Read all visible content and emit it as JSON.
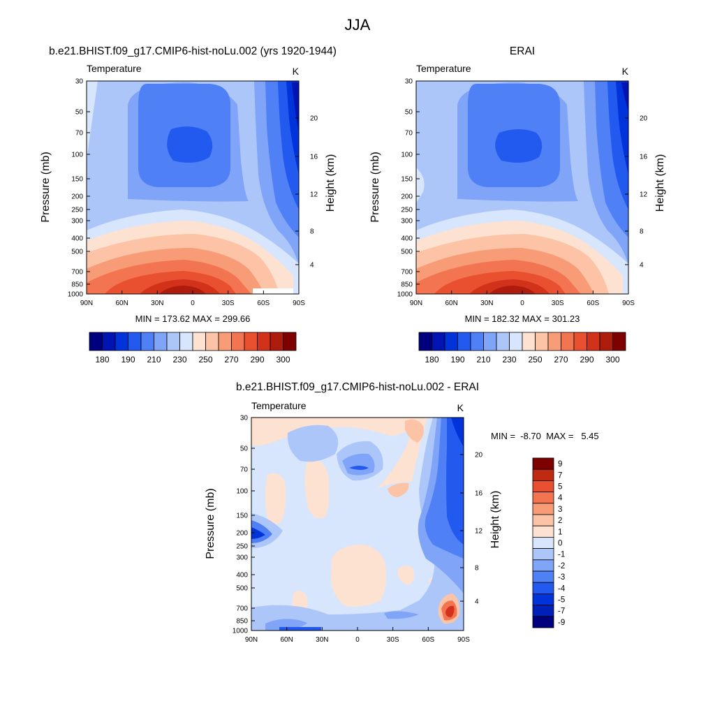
{
  "title": "JJA",
  "colors": {
    "temperature": [
      "#00007f",
      "#0014b4",
      "#0033d9",
      "#2259ef",
      "#5080f5",
      "#7fa4f8",
      "#adc6fa",
      "#d7e6fc",
      "#fde2d2",
      "#fdc3a6",
      "#f89c78",
      "#f27450",
      "#e8502f",
      "#d2321a",
      "#ad1c0d",
      "#7f0000"
    ],
    "difference": [
      "#00007f",
      "#0020b8",
      "#0033d9",
      "#2259ef",
      "#5080f5",
      "#7fa4f8",
      "#adc6fa",
      "#d7e6fc",
      "#fde2d2",
      "#fdc3a6",
      "#f89c78",
      "#f27450",
      "#e8502f",
      "#bf2a12",
      "#7f0000"
    ]
  },
  "chart_data": [
    {
      "type": "heatmap",
      "title": "b.e21.BHIST.f09_g17.CMIP6-hist-noLu.002 (yrs 1920-1944)",
      "left_label": "Temperature",
      "right_label": "K",
      "ylabel": "Pressure (mb)",
      "y2label": "Height (km)",
      "x_ticks": [
        "90N",
        "60N",
        "30N",
        "0",
        "30S",
        "60S",
        "90S"
      ],
      "y_ticks": [
        "30",
        "50",
        "70",
        "100",
        "150",
        "200",
        "250",
        "300",
        "400",
        "500",
        "700",
        "850",
        "1000"
      ],
      "y2_ticks": [
        "20",
        "16",
        "12",
        "8",
        "4"
      ],
      "stats": "MIN = 173.62  MAX = 299.66",
      "colorbar_labels": [
        "180",
        "190",
        "210",
        "230",
        "250",
        "270",
        "290",
        "300"
      ]
    },
    {
      "type": "heatmap",
      "title": "ERAI",
      "left_label": "Temperature",
      "right_label": "K",
      "ylabel": "Pressure (mb)",
      "y2label": "Height (km)",
      "x_ticks": [
        "90N",
        "60N",
        "30N",
        "0",
        "30S",
        "60S",
        "90S"
      ],
      "y_ticks": [
        "30",
        "50",
        "70",
        "100",
        "150",
        "200",
        "250",
        "300",
        "400",
        "500",
        "700",
        "850",
        "1000"
      ],
      "y2_ticks": [
        "20",
        "16",
        "12",
        "8",
        "4"
      ],
      "stats": "MIN = 182.32  MAX = 301.23",
      "colorbar_labels": [
        "180",
        "190",
        "210",
        "230",
        "250",
        "270",
        "290",
        "300"
      ]
    },
    {
      "type": "heatmap",
      "title": "b.e21.BHIST.f09_g17.CMIP6-hist-noLu.002 - ERAI",
      "left_label": "Temperature",
      "right_label": "K",
      "ylabel": "Pressure (mb)",
      "y2label": "Height (km)",
      "x_ticks": [
        "90N",
        "60N",
        "30N",
        "0",
        "30S",
        "60S",
        "90S"
      ],
      "y_ticks": [
        "30",
        "50",
        "70",
        "100",
        "150",
        "200",
        "250",
        "300",
        "400",
        "500",
        "700",
        "850",
        "1000"
      ],
      "y2_ticks": [
        "20",
        "16",
        "12",
        "8",
        "4"
      ],
      "stats": "MIN =  -8.70  MAX =   5.45",
      "colorbar_labels": [
        "9",
        "7",
        "5",
        "4",
        "3",
        "2",
        "1",
        "0",
        "-1",
        "-2",
        "-3",
        "-4",
        "-5",
        "-7",
        "-9"
      ]
    }
  ]
}
